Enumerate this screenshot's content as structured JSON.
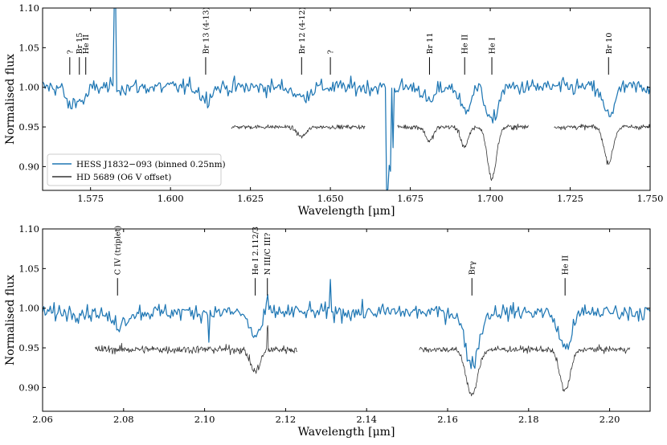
{
  "colors": {
    "blue": "#1f77b4",
    "black": "#333333"
  },
  "chart_data": [
    {
      "type": "line",
      "xlabel": "Wavelength [μm]",
      "ylabel": "Normalised flux",
      "xlim": [
        1.56,
        1.75
      ],
      "ylim": [
        0.87,
        1.1
      ],
      "xticks": [
        1.575,
        1.6,
        1.625,
        1.65,
        1.675,
        1.7,
        1.725,
        1.75
      ],
      "xtick_labels": [
        "1.575",
        "1.600",
        "1.625",
        "1.650",
        "1.675",
        "1.700",
        "1.725",
        "1.750"
      ],
      "yticks": [
        0.9,
        0.95,
        1.0,
        1.05,
        1.1
      ],
      "ytick_labels": [
        "0.90",
        "0.95",
        "1.00",
        "1.05",
        "1.10"
      ],
      "legend": {
        "placement": "lower-left",
        "entries": [
          "HESS J1832−093 (binned 0.25nm)",
          "HD 5689 (O6 V offset)"
        ]
      },
      "series": [
        {
          "name": "HESS J1832−093 (binned 0.25nm)",
          "color": "#1f77b4",
          "segments": [
            {
              "x_start": 1.56,
              "x_end": 1.75,
              "base": 1.0,
              "noise": 0.008,
              "lines": [
                [
                  1.5685,
                  0.025,
                  0.0012
                ],
                [
                  1.5715,
                  0.015,
                  0.001
                ],
                [
                  1.5735,
                  0.012,
                  0.001
                ],
                [
                  1.611,
                  0.015,
                  0.0015
                ],
                [
                  1.641,
                  0.013,
                  0.002
                ],
                [
                  1.681,
                  0.02,
                  0.0015
                ],
                [
                  1.692,
                  0.03,
                  0.0015
                ],
                [
                  1.7005,
                  0.045,
                  0.0017
                ],
                [
                  1.737,
                  0.035,
                  0.0018
                ]
              ],
              "spikes": [
                [
                  1.5825,
                  0.11
                ],
                [
                  1.6678,
                  -0.13
                ],
                [
                  1.6685,
                  -0.1
                ],
                [
                  1.6695,
                  -0.08
                ]
              ]
            }
          ]
        },
        {
          "name": "HD 5689 (O6 V offset)",
          "color": "#333333",
          "segments": [
            {
              "x_start": 1.619,
              "x_end": 1.661,
              "base": 0.95,
              "noise": 0.002,
              "lines": [
                [
                  1.641,
                  0.012,
                  0.0015
                ]
              ],
              "spikes": []
            },
            {
              "x_start": 1.671,
              "x_end": 1.712,
              "base": 0.95,
              "noise": 0.0025,
              "lines": [
                [
                  1.681,
                  0.018,
                  0.0012
                ],
                [
                  1.692,
                  0.025,
                  0.0012
                ],
                [
                  1.7005,
                  0.065,
                  0.0014
                ]
              ],
              "spikes": []
            },
            {
              "x_start": 1.72,
              "x_end": 1.75,
              "base": 0.95,
              "noise": 0.0025,
              "lines": [
                [
                  1.737,
                  0.045,
                  0.0014
                ]
              ],
              "spikes": []
            }
          ]
        }
      ],
      "annotations": [
        {
          "x": 1.5685,
          "text": "?"
        },
        {
          "x": 1.5715,
          "text": "Br 15"
        },
        {
          "x": 1.5735,
          "text": "He II"
        },
        {
          "x": 1.611,
          "text": "Br 13 (4-13)"
        },
        {
          "x": 1.641,
          "text": "Br 12 (4-12)"
        },
        {
          "x": 1.65,
          "text": "?"
        },
        {
          "x": 1.681,
          "text": "Br 11"
        },
        {
          "x": 1.692,
          "text": "He II"
        },
        {
          "x": 1.7005,
          "text": "He I"
        },
        {
          "x": 1.737,
          "text": "Br 10"
        }
      ]
    },
    {
      "type": "line",
      "xlabel": "Wavelength [μm]",
      "ylabel": "Normalised flux",
      "xlim": [
        2.06,
        2.21
      ],
      "ylim": [
        0.87,
        1.1
      ],
      "xticks": [
        2.06,
        2.08,
        2.1,
        2.12,
        2.14,
        2.16,
        2.18,
        2.2
      ],
      "xtick_labels": [
        "2.06",
        "2.08",
        "2.10",
        "2.12",
        "2.14",
        "2.16",
        "2.18",
        "2.20"
      ],
      "yticks": [
        0.9,
        0.95,
        1.0,
        1.05,
        1.1
      ],
      "ytick_labels": [
        "0.90",
        "0.95",
        "1.00",
        "1.05",
        "1.10"
      ],
      "series": [
        {
          "name": "HESS J1832−093 (binned 0.25nm)",
          "color": "#1f77b4",
          "segments": [
            {
              "x_start": 2.06,
              "x_end": 2.21,
              "base": 0.995,
              "noise": 0.008,
              "lines": [
                [
                  2.0785,
                  0.015,
                  0.002
                ],
                [
                  2.1125,
                  0.03,
                  0.0015
                ],
                [
                  2.166,
                  0.065,
                  0.0017
                ],
                [
                  2.189,
                  0.045,
                  0.0016
                ]
              ],
              "spikes": [
                [
                  2.101,
                  -0.035
                ],
                [
                  2.1155,
                  0.022
                ],
                [
                  2.131,
                  0.04
                ]
              ]
            }
          ]
        },
        {
          "name": "HD 5689 (O6 V offset)",
          "color": "#333333",
          "segments": [
            {
              "x_start": 2.073,
              "x_end": 2.123,
              "base": 0.948,
              "noise": 0.004,
              "lines": [
                [
                  2.1125,
                  0.028,
                  0.0012
                ]
              ],
              "spikes": [
                [
                  2.1155,
                  0.028
                ]
              ]
            },
            {
              "x_start": 2.153,
              "x_end": 2.205,
              "base": 0.948,
              "noise": 0.003,
              "lines": [
                [
                  2.166,
                  0.058,
                  0.0014
                ],
                [
                  2.189,
                  0.052,
                  0.0013
                ]
              ],
              "spikes": []
            }
          ]
        }
      ],
      "annotations": [
        {
          "x": 2.0785,
          "text": "C IV (triplet)"
        },
        {
          "x": 2.1125,
          "text": "He I 2.112/3"
        },
        {
          "x": 2.1155,
          "text": "N III/C III?"
        },
        {
          "x": 2.166,
          "text": "Brγ"
        },
        {
          "x": 2.189,
          "text": "He II"
        }
      ]
    }
  ]
}
